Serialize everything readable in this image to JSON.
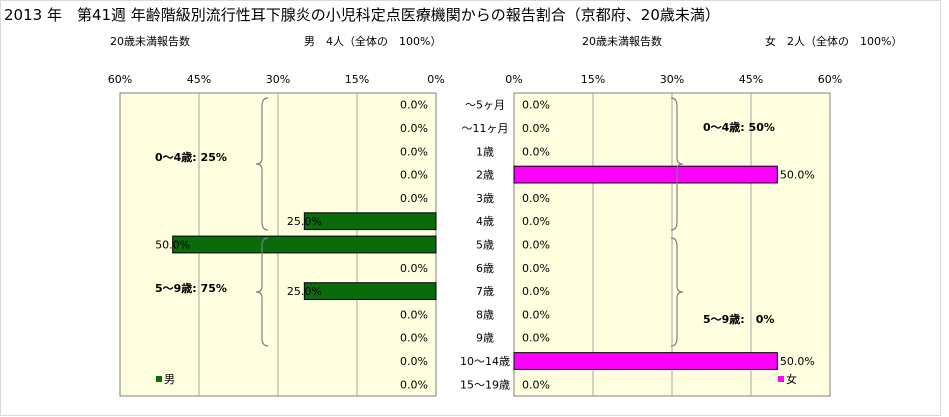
{
  "chart_data": {
    "type": "bar",
    "title": "2013 年　第41週 年齢階級別流行性耳下腺炎の小児科定点医療機関からの報告割合（京都府、20歳未満）",
    "left_header": "20歳未満報告数",
    "male_count_label": "男　4人（全体の　100%）",
    "right_header": "20歳未満報告数",
    "female_count_label": "女　2人（全体の　100%）",
    "categories": [
      "～5ヶ月",
      "～11ヶ月",
      "1歳",
      "2歳",
      "3歳",
      "4歳",
      "5歳",
      "6歳",
      "7歳",
      "8歳",
      "9歳",
      "10～14歳",
      "15～19歳"
    ],
    "series": [
      {
        "name": "男",
        "values": [
          0,
          0,
          0,
          0,
          0,
          25,
          50,
          0,
          25,
          0,
          0,
          0,
          0
        ],
        "color": "#0a6b0a",
        "labels": [
          "0.0%",
          "0.0%",
          "0.0%",
          "0.0%",
          "0.0%",
          "25.0%",
          "50.0%",
          "0.0%",
          "25.0%",
          "0.0%",
          "0.0%",
          "0.0%",
          "0.0%"
        ]
      },
      {
        "name": "女",
        "values": [
          0,
          0,
          0,
          50,
          0,
          0,
          0,
          0,
          0,
          0,
          0,
          50,
          0
        ],
        "color": "#ff00ff",
        "labels": [
          "0.0%",
          "0.0%",
          "0.0%",
          "50.0%",
          "0.0%",
          "0.0%",
          "0.0%",
          "0.0%",
          "0.0%",
          "0.0%",
          "0.0%",
          "50.0%",
          "0.0%"
        ]
      }
    ],
    "xlim": [
      0,
      60
    ],
    "left_ticks": [
      "60%",
      "45%",
      "30%",
      "15%",
      "0%"
    ],
    "right_ticks": [
      "0%",
      "15%",
      "30%",
      "45%",
      "60%"
    ],
    "annotations": {
      "male_0_4": "0～4歳: 25%",
      "male_5_9": "5～9歳: 75%",
      "female_0_4": "0～4歳: 50%",
      "female_5_9": "5～9歳:　0%"
    },
    "legend": {
      "male": "男",
      "female": "女"
    },
    "plot_background": "#ffffe0"
  }
}
